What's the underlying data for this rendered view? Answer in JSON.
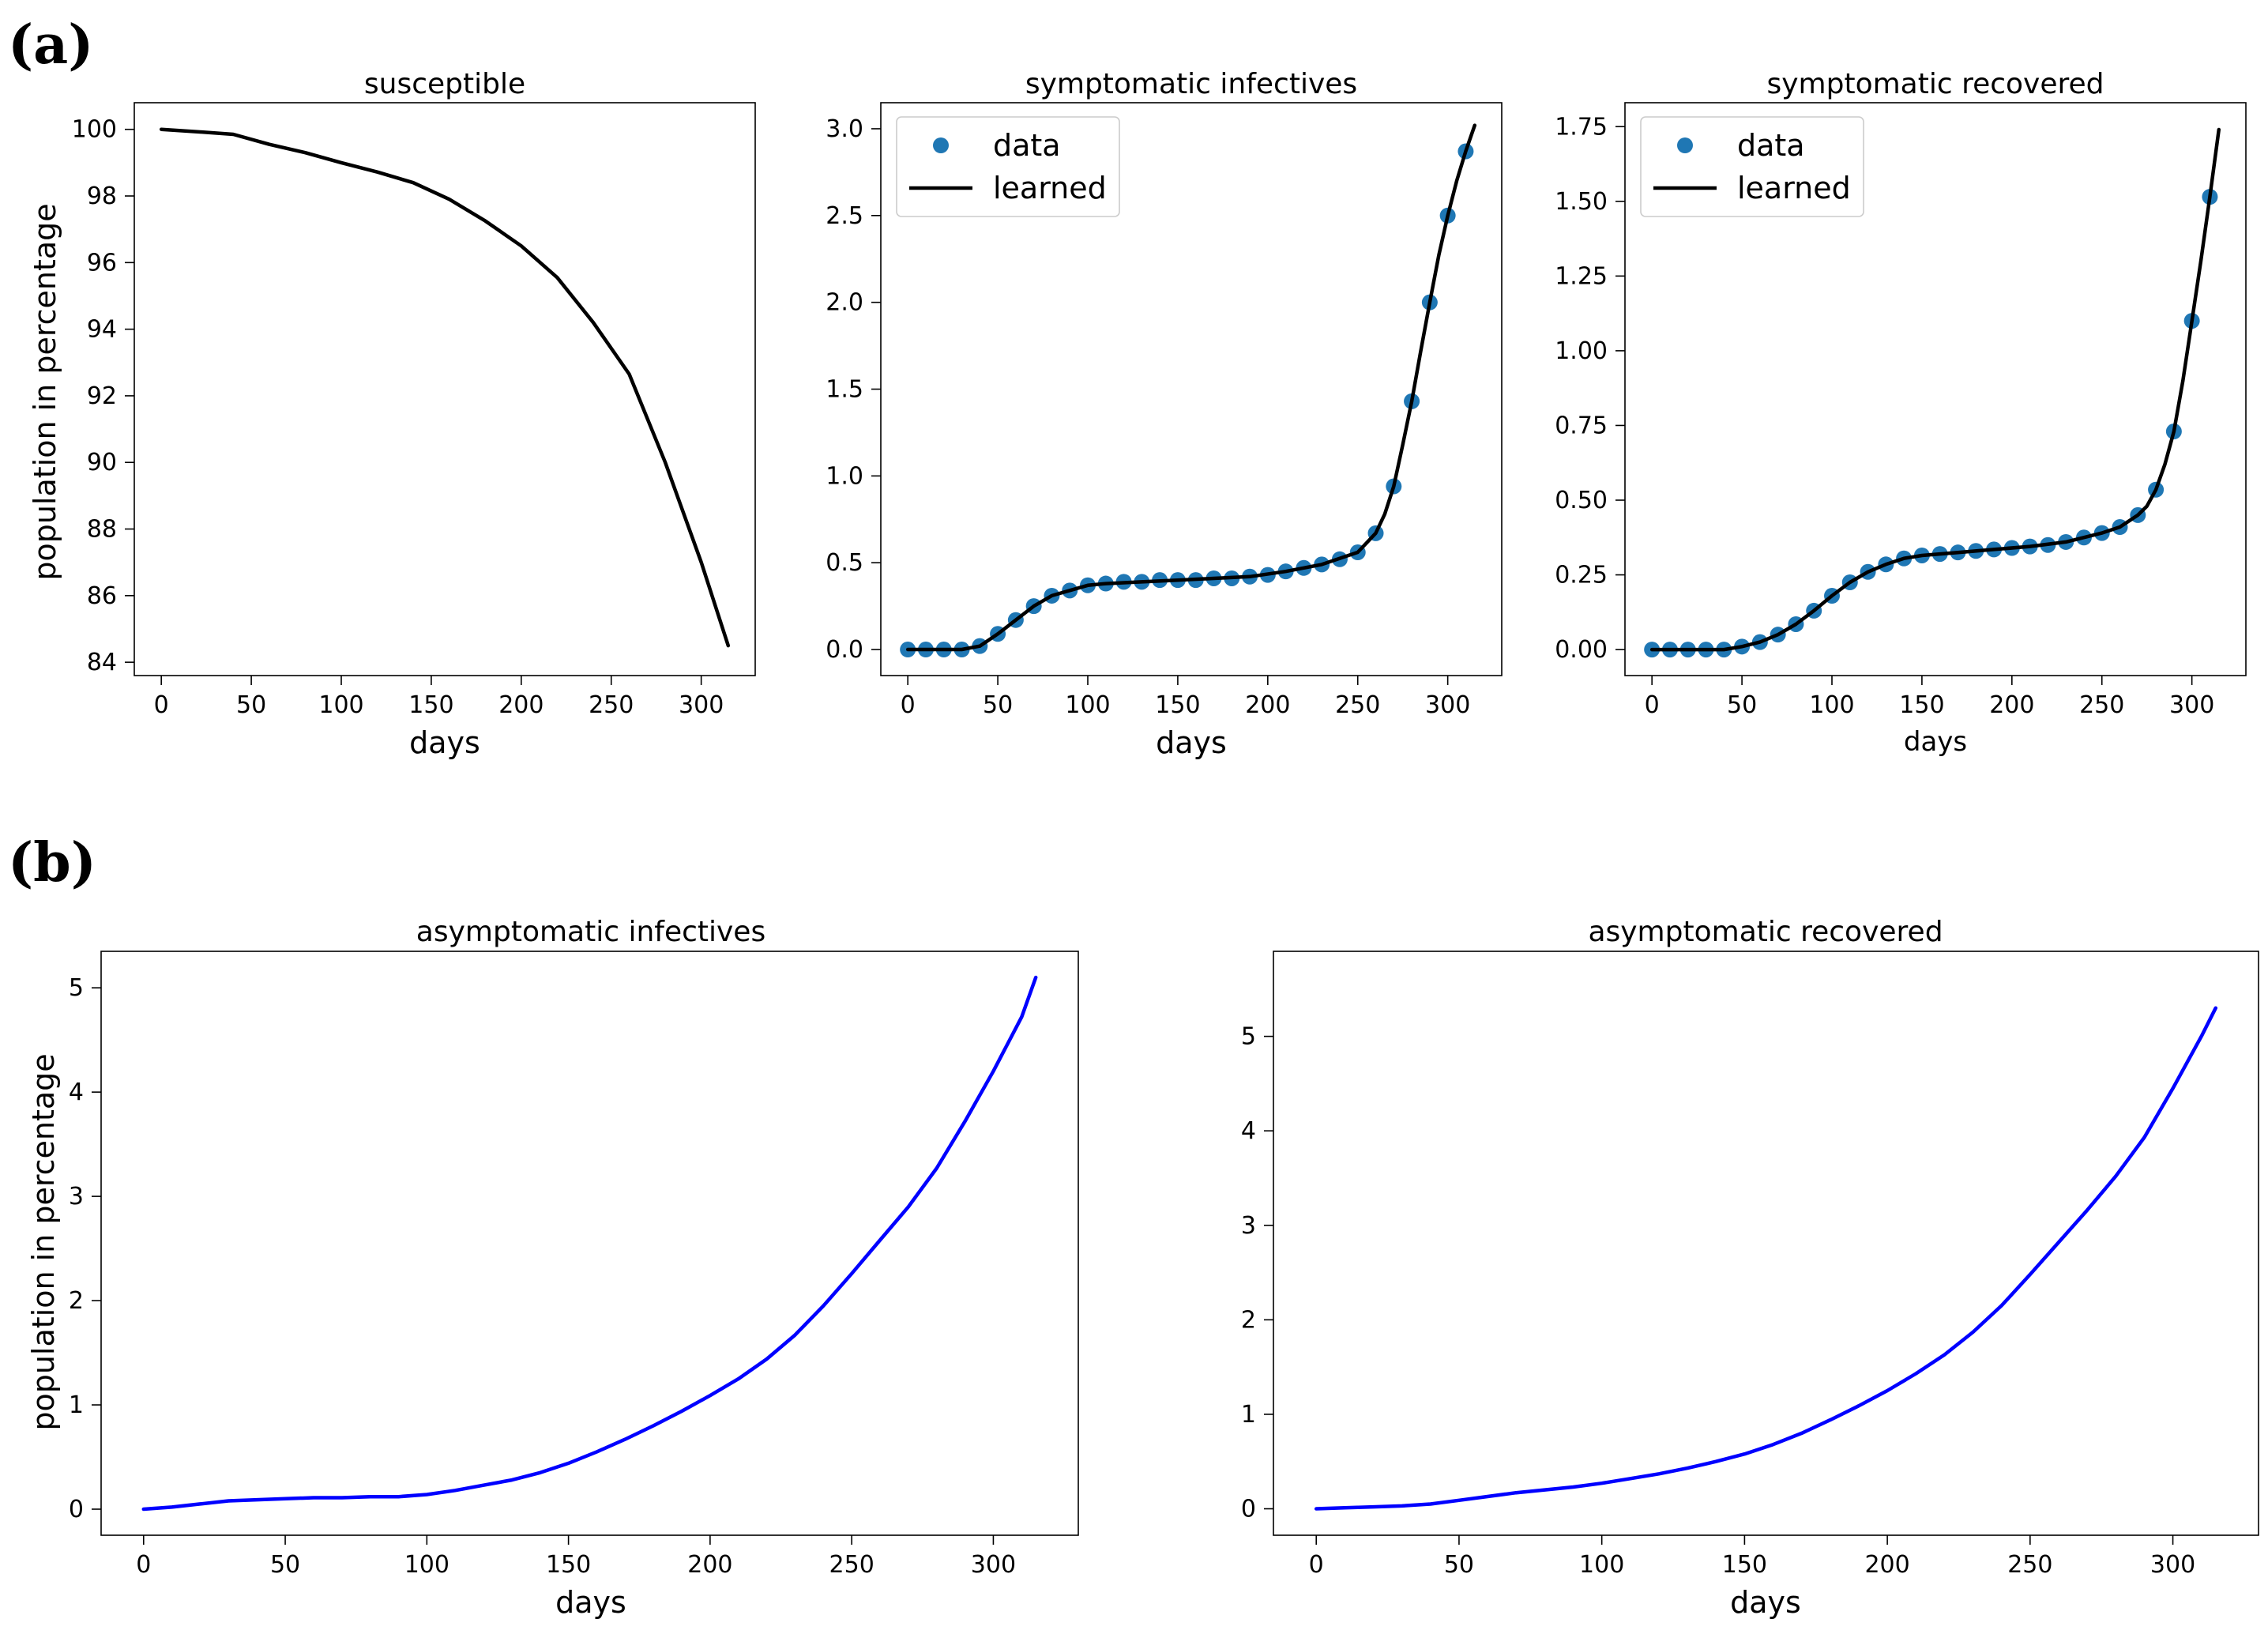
{
  "panel_labels": {
    "a": "(a)",
    "b": "(b)"
  },
  "chart_data": [
    {
      "type": "line",
      "title": "susceptible",
      "xlabel": "days",
      "ylabel": "population in percentage",
      "xlim": [
        -15,
        330
      ],
      "ylim": [
        83.6,
        100.8
      ],
      "xticks": [
        0,
        50,
        100,
        150,
        200,
        250,
        300
      ],
      "yticks": [
        84,
        86,
        88,
        90,
        92,
        94,
        96,
        98,
        100
      ],
      "legend": false,
      "series": [
        {
          "name": "learned",
          "color": "#000000",
          "x": [
            0,
            20,
            40,
            60,
            80,
            100,
            120,
            140,
            160,
            180,
            200,
            220,
            240,
            260,
            280,
            300,
            315
          ],
          "y": [
            100,
            99.93,
            99.85,
            99.55,
            99.3,
            99.0,
            98.72,
            98.4,
            97.9,
            97.25,
            96.5,
            95.55,
            94.2,
            92.65,
            90.0,
            87.0,
            84.5
          ]
        }
      ]
    },
    {
      "type": "line",
      "title": "symptomatic infectives",
      "xlabel": "days",
      "ylabel": "",
      "xlim": [
        -15,
        330
      ],
      "ylim": [
        -0.15,
        3.15
      ],
      "xticks": [
        0,
        50,
        100,
        150,
        200,
        250,
        300
      ],
      "yticks": [
        0.0,
        0.5,
        1.0,
        1.5,
        2.0,
        2.5,
        3.0
      ],
      "ytick_format": 1,
      "legend": true,
      "legend_labels": [
        "data",
        "learned"
      ],
      "series": [
        {
          "name": "data",
          "kind": "scatter",
          "color": "#1f77b4",
          "x": [
            0,
            10,
            20,
            30,
            40,
            50,
            60,
            70,
            80,
            90,
            100,
            110,
            120,
            130,
            140,
            150,
            160,
            170,
            180,
            190,
            200,
            210,
            220,
            230,
            240,
            250,
            260,
            270,
            280,
            290,
            300,
            310
          ],
          "y": [
            0.0,
            0.0,
            0.0,
            0.0,
            0.02,
            0.09,
            0.17,
            0.25,
            0.31,
            0.34,
            0.37,
            0.38,
            0.39,
            0.39,
            0.4,
            0.4,
            0.4,
            0.41,
            0.41,
            0.42,
            0.43,
            0.45,
            0.47,
            0.49,
            0.52,
            0.56,
            0.67,
            0.94,
            1.43,
            2.0,
            2.5,
            2.87
          ]
        },
        {
          "name": "learned",
          "kind": "line",
          "color": "#000000",
          "x": [
            0,
            30,
            40,
            50,
            60,
            70,
            80,
            90,
            100,
            110,
            130,
            150,
            170,
            190,
            210,
            230,
            250,
            260,
            265,
            270,
            275,
            280,
            285,
            290,
            295,
            300,
            305,
            310,
            315
          ],
          "y": [
            0.0,
            0.0,
            0.02,
            0.09,
            0.17,
            0.25,
            0.31,
            0.34,
            0.37,
            0.38,
            0.39,
            0.4,
            0.41,
            0.42,
            0.45,
            0.49,
            0.56,
            0.67,
            0.78,
            0.94,
            1.18,
            1.43,
            1.72,
            2.0,
            2.27,
            2.5,
            2.7,
            2.87,
            3.02
          ]
        }
      ]
    },
    {
      "type": "line",
      "title": "symptomatic recovered",
      "xlabel": "days",
      "ylabel": "",
      "xlim": [
        -15,
        330
      ],
      "ylim": [
        -0.087,
        1.83
      ],
      "xticks": [
        0,
        50,
        100,
        150,
        200,
        250,
        300
      ],
      "yticks": [
        0.0,
        0.25,
        0.5,
        0.75,
        1.0,
        1.25,
        1.5,
        1.75
      ],
      "ytick_format": 2,
      "legend": true,
      "legend_labels": [
        "data",
        "learned"
      ],
      "series": [
        {
          "name": "data",
          "kind": "scatter",
          "color": "#1f77b4",
          "x": [
            0,
            10,
            20,
            30,
            40,
            50,
            60,
            70,
            80,
            90,
            100,
            110,
            120,
            130,
            140,
            150,
            160,
            170,
            180,
            190,
            200,
            210,
            220,
            230,
            240,
            250,
            260,
            270,
            280,
            290,
            300,
            310
          ],
          "y": [
            0.0,
            0.0,
            0.0,
            0.0,
            0.0,
            0.01,
            0.025,
            0.05,
            0.085,
            0.13,
            0.18,
            0.225,
            0.26,
            0.285,
            0.305,
            0.315,
            0.32,
            0.325,
            0.33,
            0.335,
            0.34,
            0.345,
            0.35,
            0.36,
            0.375,
            0.39,
            0.41,
            0.45,
            0.535,
            0.73,
            1.1,
            1.515
          ]
        },
        {
          "name": "learned",
          "kind": "line",
          "color": "#000000",
          "x": [
            0,
            40,
            50,
            60,
            70,
            80,
            90,
            100,
            110,
            120,
            130,
            140,
            150,
            170,
            190,
            210,
            230,
            250,
            260,
            270,
            275,
            280,
            285,
            290,
            295,
            300,
            305,
            310,
            315
          ],
          "y": [
            0.0,
            0.0,
            0.01,
            0.025,
            0.05,
            0.085,
            0.13,
            0.18,
            0.225,
            0.26,
            0.285,
            0.305,
            0.315,
            0.325,
            0.335,
            0.345,
            0.36,
            0.39,
            0.41,
            0.45,
            0.48,
            0.535,
            0.62,
            0.73,
            0.9,
            1.1,
            1.3,
            1.515,
            1.74
          ]
        }
      ]
    },
    {
      "type": "line",
      "title": "asymptomatic infectives",
      "xlabel": "days",
      "ylabel": "population in percentage",
      "xlim": [
        -15,
        330
      ],
      "ylim": [
        -0.25,
        5.35
      ],
      "xticks": [
        0,
        50,
        100,
        150,
        200,
        250,
        300
      ],
      "yticks": [
        0,
        1,
        2,
        3,
        4,
        5
      ],
      "legend": false,
      "series": [
        {
          "name": "asymptomatic infectives",
          "color": "#0000ff",
          "x": [
            0,
            10,
            20,
            30,
            40,
            50,
            60,
            70,
            80,
            90,
            100,
            110,
            120,
            130,
            140,
            150,
            160,
            170,
            180,
            190,
            200,
            210,
            220,
            230,
            240,
            250,
            260,
            270,
            280,
            290,
            300,
            310,
            315
          ],
          "y": [
            0.0,
            0.02,
            0.05,
            0.08,
            0.09,
            0.1,
            0.11,
            0.11,
            0.12,
            0.12,
            0.14,
            0.18,
            0.23,
            0.28,
            0.35,
            0.44,
            0.55,
            0.67,
            0.8,
            0.94,
            1.09,
            1.25,
            1.44,
            1.67,
            1.95,
            2.26,
            2.58,
            2.9,
            3.27,
            3.72,
            4.2,
            4.72,
            5.1
          ]
        }
      ]
    },
    {
      "type": "line",
      "title": "asymptomatic recovered",
      "xlabel": "days",
      "ylabel": "",
      "xlim": [
        -15,
        330
      ],
      "ylim": [
        -0.28,
        5.9
      ],
      "xticks": [
        0,
        50,
        100,
        150,
        200,
        250,
        300
      ],
      "yticks": [
        0,
        1,
        2,
        3,
        4,
        5
      ],
      "legend": false,
      "series": [
        {
          "name": "asymptomatic recovered",
          "color": "#0000ff",
          "x": [
            0,
            10,
            20,
            30,
            40,
            50,
            60,
            70,
            80,
            90,
            100,
            110,
            120,
            130,
            140,
            150,
            160,
            170,
            180,
            190,
            200,
            210,
            220,
            230,
            240,
            250,
            260,
            270,
            280,
            290,
            300,
            310,
            315
          ],
          "y": [
            0.0,
            0.01,
            0.02,
            0.03,
            0.05,
            0.09,
            0.13,
            0.17,
            0.2,
            0.23,
            0.27,
            0.32,
            0.37,
            0.43,
            0.5,
            0.58,
            0.68,
            0.8,
            0.94,
            1.09,
            1.25,
            1.43,
            1.63,
            1.87,
            2.15,
            2.48,
            2.82,
            3.16,
            3.52,
            3.93,
            4.45,
            5.0,
            5.3
          ]
        }
      ]
    }
  ]
}
